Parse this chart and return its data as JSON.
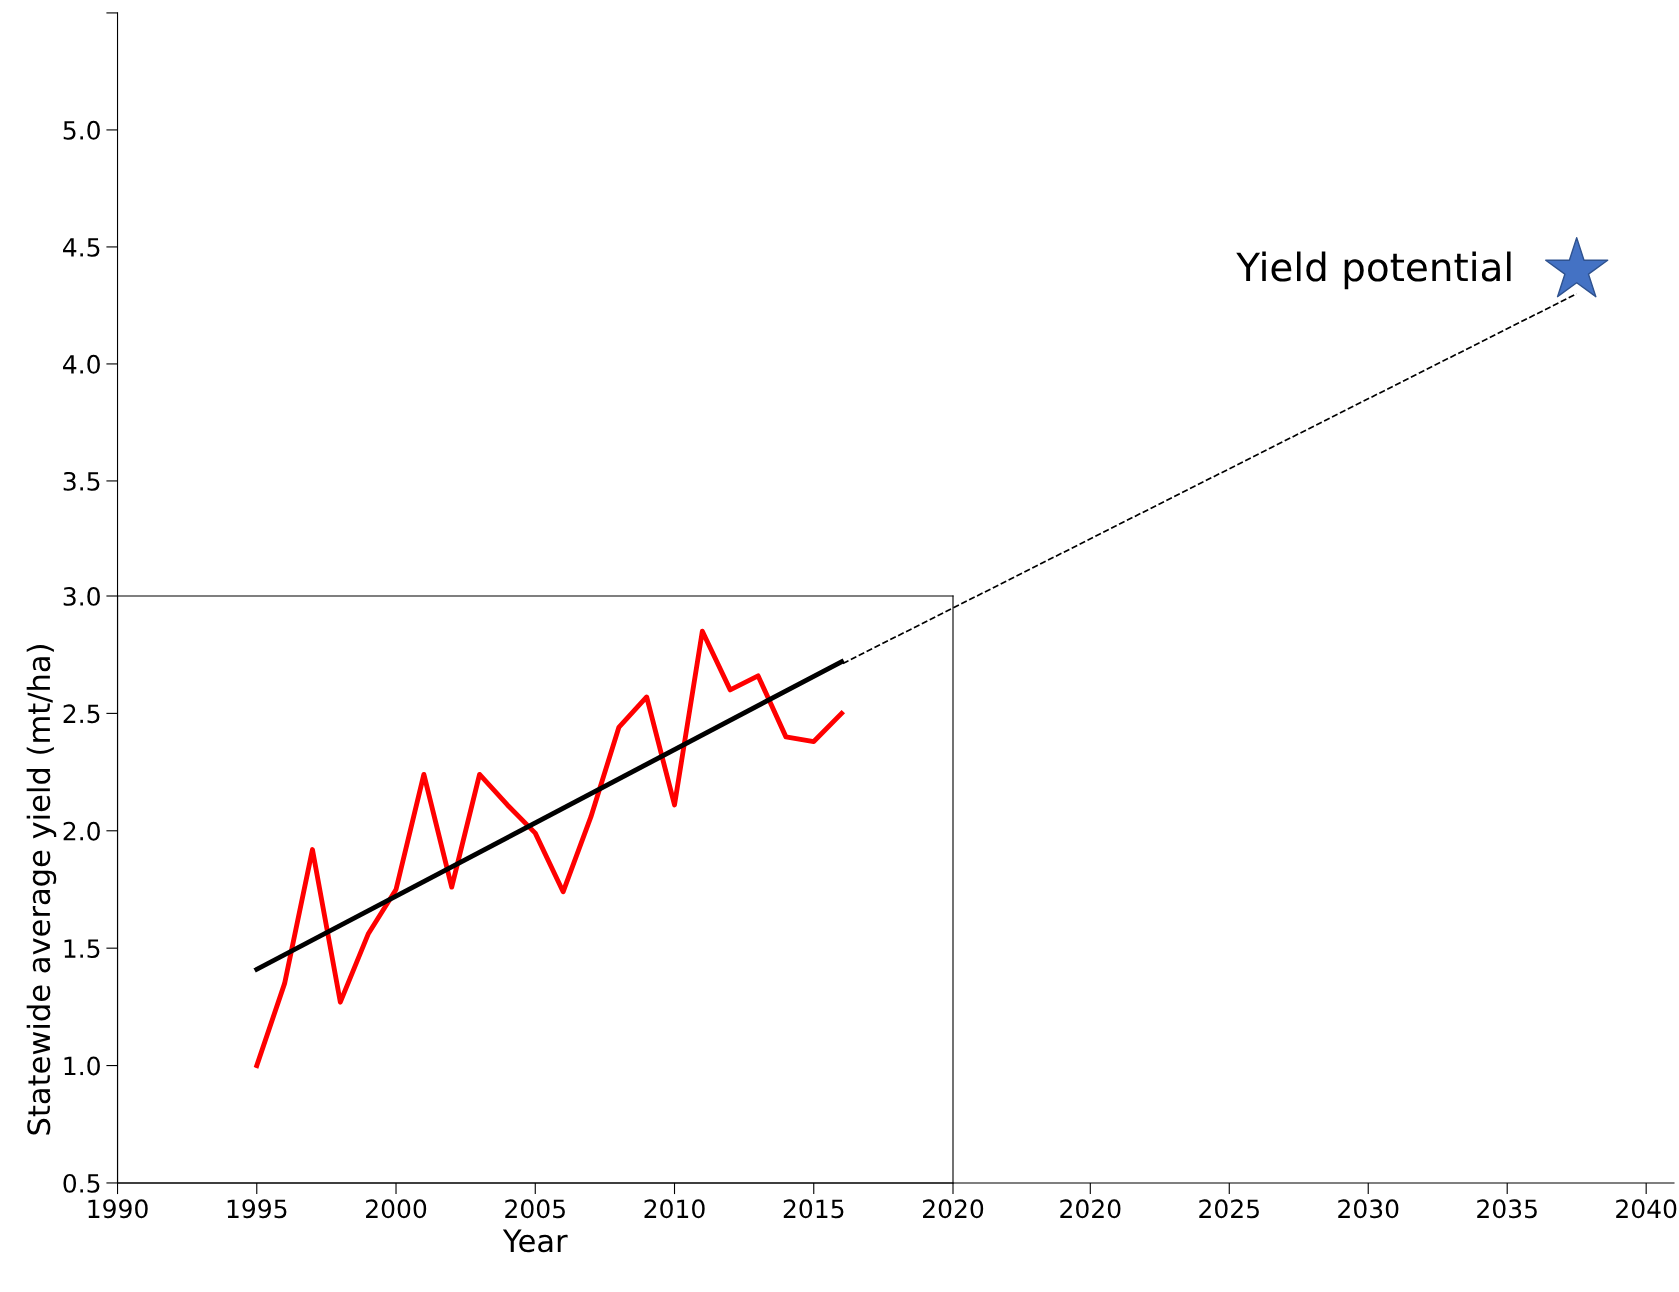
{
  "chart_data": [
    {
      "type": "line",
      "xlabel": "Year",
      "ylabel": "Statewide average yield (mt/ha)",
      "xlim": [
        1990,
        2020
      ],
      "ylim": [
        0.5,
        3.0
      ],
      "xticks": [
        1990,
        1995,
        2000,
        2005,
        2010,
        2015,
        2020
      ],
      "yticks": [
        {
          "value": 0.5,
          "label": "0.5"
        },
        {
          "value": 1.0,
          "label": "1.0"
        },
        {
          "value": 1.5,
          "label": "1.5"
        },
        {
          "value": 2.0,
          "label": "2.0"
        },
        {
          "value": 2.5,
          "label": "2.5"
        },
        {
          "value": 3.0,
          "label": "3.0"
        }
      ],
      "series": [
        {
          "color": "#ff0000",
          "line_style": "solid",
          "x": [
            1995,
            1996,
            1997,
            1998,
            1999,
            2000,
            2001,
            2002,
            2003,
            2004,
            2005,
            2006,
            2007,
            2008,
            2009,
            2010,
            2011,
            2012,
            2013,
            2014,
            2015,
            2016
          ],
          "values": [
            1.0,
            1.35,
            1.92,
            1.27,
            1.56,
            1.75,
            2.24,
            1.76,
            2.24,
            2.11,
            1.99,
            1.74,
            2.06,
            2.44,
            2.57,
            2.11,
            2.85,
            2.6,
            2.66,
            2.4,
            2.38,
            2.5
          ]
        },
        {
          "color": "#000000",
          "line_style": "solid",
          "x": [
            1995,
            2016
          ],
          "values": [
            1.41,
            2.72
          ]
        }
      ]
    },
    {
      "type": "line",
      "xlim": [
        1985,
        2041
      ],
      "ylim": [
        0.5,
        5.5
      ],
      "xticks": [
        2020,
        2025,
        2030,
        2035,
        2040
      ],
      "yticks": [
        {
          "value": 3.5,
          "label": "3.5"
        },
        {
          "value": 4.0,
          "label": "4.0"
        },
        {
          "value": 4.5,
          "label": "4.5"
        },
        {
          "value": 5.0,
          "label": "5.0"
        },
        {
          "value": 5.5,
          "label": null
        }
      ],
      "series": [
        {
          "color": "#000000",
          "line_style": "dashed",
          "x": [
            2011.1,
            2037.5
          ],
          "values": [
            2.72,
            4.3
          ]
        },
        {
          "type": "scatter",
          "color": "#4472c4",
          "marker": "star",
          "x": [
            2037.5
          ],
          "values": [
            4.4
          ]
        }
      ],
      "annotations": [
        {
          "text": "Yield potential",
          "x": 2037.5,
          "y": 4.4
        }
      ]
    }
  ]
}
